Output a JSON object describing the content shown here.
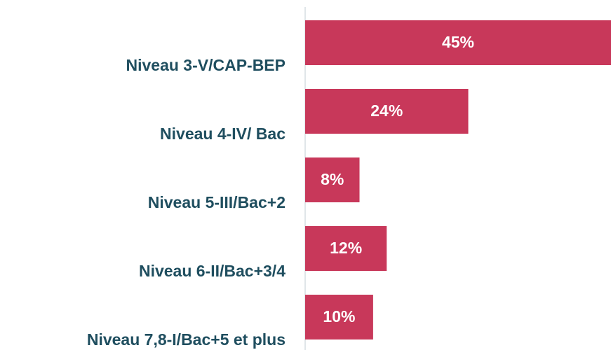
{
  "chart_data": {
    "type": "barh",
    "categories": [
      "Niveau 3-V/CAP-BEP",
      "Niveau 4-IV/ Bac",
      "Niveau 5-III/Bac+2",
      "Niveau 6-II/Bac+3/4",
      "Niveau 7,8-I/Bac+5 et plus"
    ],
    "values": [
      45,
      24,
      8,
      12,
      10
    ],
    "value_labels": [
      "45%",
      "24%",
      "8%",
      "12%",
      "10%"
    ],
    "color": "#c8385a",
    "xlim": [
      0,
      45
    ]
  }
}
